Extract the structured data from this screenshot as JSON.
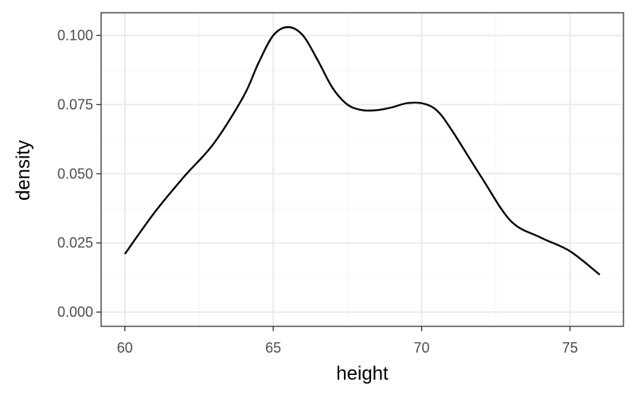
{
  "chart_data": {
    "type": "line",
    "title": "",
    "xlabel": "height",
    "ylabel": "density",
    "xlim": [
      59.2,
      76.8
    ],
    "ylim": [
      -0.00515,
      0.1082
    ],
    "x_ticks": [
      60,
      65,
      70,
      75
    ],
    "x_tick_labels": [
      "60",
      "65",
      "70",
      "75"
    ],
    "y_ticks": [
      0.0,
      0.025,
      0.05,
      0.075,
      0.1
    ],
    "y_tick_labels": [
      "0.000",
      "0.025",
      "0.050",
      "0.075",
      "0.100"
    ],
    "grid": true,
    "series": [
      {
        "x": [
          60,
          61,
          62,
          63,
          64,
          64.5,
          65,
          65.5,
          66,
          66.5,
          67,
          67.5,
          68,
          68.5,
          69,
          69.5,
          70,
          70.5,
          71,
          72,
          73,
          74,
          75,
          76
        ],
        "y": [
          0.021,
          0.036,
          0.049,
          0.061,
          0.078,
          0.09,
          0.1,
          0.103,
          0.1,
          0.091,
          0.081,
          0.075,
          0.073,
          0.073,
          0.074,
          0.0755,
          0.0755,
          0.073,
          0.066,
          0.049,
          0.033,
          0.027,
          0.022,
          0.0135
        ],
        "color": "#000000"
      }
    ],
    "colors": {
      "panel_border": "#333333",
      "grid_major": "#ebebeb",
      "grid_minor": "#f5f5f5",
      "tick_label": "#4d4d4d",
      "axis_title": "#000000"
    }
  }
}
